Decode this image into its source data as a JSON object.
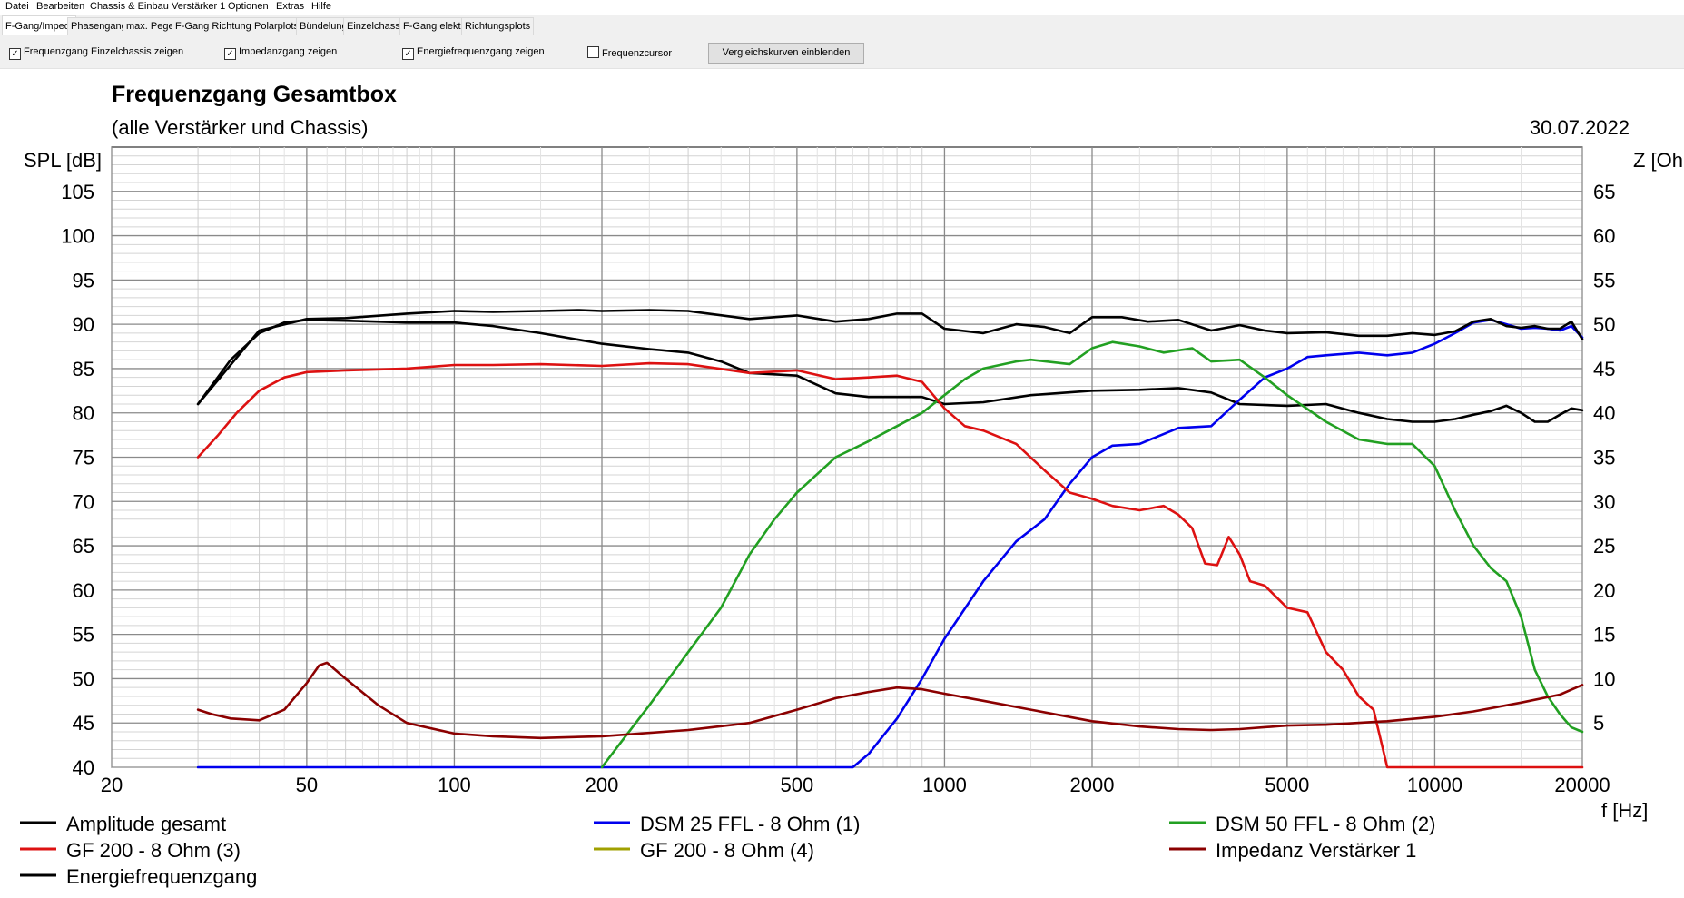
{
  "menu": [
    "Datei",
    "Bearbeiten",
    "Chassis & Einbau",
    "Verstärker 1",
    "Optionen",
    "Extras",
    "Hilfe"
  ],
  "tabs": [
    {
      "label": "F-Gang/Imped.",
      "active": true
    },
    {
      "label": "Phasengang",
      "active": false
    },
    {
      "label": "max. Pegel",
      "active": false
    },
    {
      "label": "F-Gang Richtungen",
      "active": false
    },
    {
      "label": "Polarplots",
      "active": false
    },
    {
      "label": "Bündelung",
      "active": false
    },
    {
      "label": "Einzelchassis",
      "active": false
    },
    {
      "label": "F-Gang elektr.",
      "active": false
    },
    {
      "label": "Richtungsplots",
      "active": false
    }
  ],
  "options": [
    {
      "label": "Frequenzgang Einzelchassis zeigen",
      "checked": true
    },
    {
      "label": "Impedanzgang zeigen",
      "checked": true
    },
    {
      "label": "Energiefrequenzgang zeigen",
      "checked": true
    },
    {
      "label": "Frequenzcursor",
      "checked": false
    }
  ],
  "compare_button": "Vergleichskurven einblenden",
  "chart_data": {
    "type": "line",
    "title": "Frequenzgang Gesamtbox",
    "subtitle": "(alle Verstärker und Chassis)",
    "date": "30.07.2022",
    "ylabel": "SPL [dB]",
    "y2label": "Z [Ohm]",
    "xlabel": "f [Hz]",
    "x_scale": "log",
    "xlim": [
      20,
      20000
    ],
    "ylim": [
      40,
      110
    ],
    "y2lim": [
      0,
      70
    ],
    "x_ticks": [
      20,
      50,
      100,
      200,
      500,
      1000,
      2000,
      5000,
      10000,
      20000
    ],
    "y_ticks": [
      40,
      45,
      50,
      55,
      60,
      65,
      70,
      75,
      80,
      85,
      90,
      95,
      100,
      105
    ],
    "y2_ticks": [
      5,
      10,
      15,
      20,
      25,
      30,
      35,
      40,
      45,
      50,
      55,
      60,
      65
    ],
    "grid": true,
    "legend_position": "bottom",
    "series": [
      {
        "name": "Amplitude gesamt",
        "color": "#000000",
        "axis": "left",
        "points": [
          [
            30,
            81
          ],
          [
            35,
            86
          ],
          [
            40,
            89
          ],
          [
            45,
            90.2
          ],
          [
            50,
            90.5
          ],
          [
            60,
            90.4
          ],
          [
            80,
            90.2
          ],
          [
            100,
            90.2
          ],
          [
            120,
            89.8
          ],
          [
            150,
            89
          ],
          [
            200,
            87.8
          ],
          [
            250,
            87.2
          ],
          [
            300,
            86.8
          ],
          [
            350,
            85.8
          ],
          [
            400,
            84.5
          ],
          [
            500,
            84.2
          ],
          [
            600,
            82.2
          ],
          [
            700,
            81.8
          ],
          [
            800,
            81.8
          ],
          [
            900,
            81.8
          ],
          [
            1000,
            81
          ],
          [
            1200,
            81.2
          ],
          [
            1500,
            82
          ],
          [
            2000,
            82.5
          ],
          [
            2500,
            82.6
          ],
          [
            3000,
            82.8
          ],
          [
            3500,
            82.3
          ],
          [
            4000,
            81
          ],
          [
            5000,
            80.8
          ],
          [
            6000,
            81
          ],
          [
            7000,
            80
          ],
          [
            8000,
            79.3
          ],
          [
            9000,
            79
          ],
          [
            10000,
            79
          ],
          [
            11000,
            79.3
          ],
          [
            12000,
            79.8
          ],
          [
            13000,
            80.2
          ],
          [
            14000,
            80.8
          ],
          [
            15000,
            80
          ],
          [
            16000,
            79
          ],
          [
            17000,
            79
          ],
          [
            18000,
            79.8
          ],
          [
            19000,
            80.5
          ],
          [
            20000,
            80.3
          ]
        ]
      },
      {
        "name": "DSM 25 FFL - 8 Ohm (1)",
        "color": "#0000ee",
        "axis": "left",
        "points": [
          [
            30,
            40
          ],
          [
            100,
            40
          ],
          [
            300,
            40
          ],
          [
            500,
            40
          ],
          [
            650,
            40
          ],
          [
            700,
            41.5
          ],
          [
            800,
            45.5
          ],
          [
            900,
            50
          ],
          [
            1000,
            54.5
          ],
          [
            1200,
            61
          ],
          [
            1400,
            65.5
          ],
          [
            1600,
            68
          ],
          [
            1800,
            72
          ],
          [
            2000,
            75
          ],
          [
            2200,
            76.3
          ],
          [
            2500,
            76.5
          ],
          [
            3000,
            78.3
          ],
          [
            3500,
            78.5
          ],
          [
            4000,
            81.5
          ],
          [
            4500,
            84
          ],
          [
            5000,
            85
          ],
          [
            5500,
            86.3
          ],
          [
            6000,
            86.5
          ],
          [
            7000,
            86.8
          ],
          [
            8000,
            86.5
          ],
          [
            9000,
            86.8
          ],
          [
            10000,
            87.8
          ],
          [
            11000,
            89
          ],
          [
            12000,
            90.2
          ],
          [
            13000,
            90.5
          ],
          [
            14000,
            90
          ],
          [
            15000,
            89.5
          ],
          [
            16000,
            89.6
          ],
          [
            17000,
            89.5
          ],
          [
            18000,
            89.3
          ],
          [
            19000,
            89.8
          ],
          [
            20000,
            88.5
          ]
        ]
      },
      {
        "name": "DSM 50 FFL - 8 Ohm (2)",
        "color": "#22a022",
        "axis": "left",
        "points": [
          [
            200,
            40
          ],
          [
            220,
            43
          ],
          [
            250,
            47
          ],
          [
            300,
            53
          ],
          [
            350,
            58
          ],
          [
            400,
            64
          ],
          [
            450,
            68
          ],
          [
            500,
            71
          ],
          [
            600,
            75
          ],
          [
            700,
            76.8
          ],
          [
            800,
            78.5
          ],
          [
            900,
            80
          ],
          [
            1000,
            82
          ],
          [
            1100,
            83.8
          ],
          [
            1200,
            85
          ],
          [
            1400,
            85.8
          ],
          [
            1500,
            86
          ],
          [
            1800,
            85.5
          ],
          [
            2000,
            87.3
          ],
          [
            2200,
            88
          ],
          [
            2500,
            87.5
          ],
          [
            2800,
            86.8
          ],
          [
            3200,
            87.3
          ],
          [
            3500,
            85.8
          ],
          [
            4000,
            86
          ],
          [
            4500,
            84
          ],
          [
            5000,
            82
          ],
          [
            6000,
            79
          ],
          [
            7000,
            77
          ],
          [
            8000,
            76.5
          ],
          [
            9000,
            76.5
          ],
          [
            10000,
            74
          ],
          [
            11000,
            69
          ],
          [
            12000,
            65
          ],
          [
            13000,
            62.5
          ],
          [
            14000,
            61
          ],
          [
            15000,
            57
          ],
          [
            16000,
            51
          ],
          [
            17000,
            48
          ],
          [
            18000,
            46
          ],
          [
            19000,
            44.5
          ],
          [
            20000,
            44
          ]
        ]
      },
      {
        "name": "GF 200 - 8 Ohm (3)",
        "color": "#dd1111",
        "axis": "left",
        "points": [
          [
            30,
            75
          ],
          [
            33,
            77.5
          ],
          [
            36,
            80
          ],
          [
            40,
            82.5
          ],
          [
            45,
            84
          ],
          [
            50,
            84.6
          ],
          [
            60,
            84.8
          ],
          [
            80,
            85
          ],
          [
            100,
            85.4
          ],
          [
            120,
            85.4
          ],
          [
            150,
            85.5
          ],
          [
            200,
            85.3
          ],
          [
            250,
            85.6
          ],
          [
            300,
            85.5
          ],
          [
            400,
            84.5
          ],
          [
            500,
            84.8
          ],
          [
            600,
            83.8
          ],
          [
            700,
            84
          ],
          [
            800,
            84.2
          ],
          [
            900,
            83.5
          ],
          [
            1000,
            80.5
          ],
          [
            1100,
            78.5
          ],
          [
            1200,
            78
          ],
          [
            1400,
            76.5
          ],
          [
            1600,
            73.5
          ],
          [
            1800,
            71
          ],
          [
            2000,
            70.3
          ],
          [
            2200,
            69.5
          ],
          [
            2500,
            69
          ],
          [
            2800,
            69.5
          ],
          [
            3000,
            68.5
          ],
          [
            3200,
            67
          ],
          [
            3400,
            63
          ],
          [
            3600,
            62.8
          ],
          [
            3800,
            66
          ],
          [
            4000,
            64
          ],
          [
            4200,
            61
          ],
          [
            4500,
            60.5
          ],
          [
            5000,
            58
          ],
          [
            5500,
            57.5
          ],
          [
            6000,
            53
          ],
          [
            6500,
            51
          ],
          [
            7000,
            48
          ],
          [
            7500,
            46.5
          ],
          [
            8000,
            40
          ],
          [
            9000,
            40
          ],
          [
            10000,
            40
          ],
          [
            15000,
            40
          ],
          [
            20000,
            40
          ]
        ]
      },
      {
        "name": "GF 200 - 8 Ohm (4)",
        "color": "#a0a000",
        "axis": "left",
        "points": []
      },
      {
        "name": "Impedanz Verstärker 1",
        "color": "#8b0000",
        "axis": "right",
        "points": [
          [
            30,
            6.5
          ],
          [
            32,
            6
          ],
          [
            35,
            5.5
          ],
          [
            40,
            5.3
          ],
          [
            45,
            6.5
          ],
          [
            50,
            9.5
          ],
          [
            53,
            11.5
          ],
          [
            55,
            11.8
          ],
          [
            60,
            10
          ],
          [
            70,
            7
          ],
          [
            80,
            5
          ],
          [
            100,
            3.8
          ],
          [
            120,
            3.5
          ],
          [
            150,
            3.3
          ],
          [
            200,
            3.5
          ],
          [
            300,
            4.2
          ],
          [
            400,
            5
          ],
          [
            500,
            6.5
          ],
          [
            600,
            7.8
          ],
          [
            700,
            8.5
          ],
          [
            800,
            9
          ],
          [
            900,
            8.8
          ],
          [
            1000,
            8.3
          ],
          [
            1200,
            7.5
          ],
          [
            1500,
            6.5
          ],
          [
            2000,
            5.2
          ],
          [
            2500,
            4.6
          ],
          [
            3000,
            4.3
          ],
          [
            3500,
            4.2
          ],
          [
            4000,
            4.3
          ],
          [
            5000,
            4.7
          ],
          [
            6000,
            4.8
          ],
          [
            8000,
            5.2
          ],
          [
            10000,
            5.7
          ],
          [
            12000,
            6.3
          ],
          [
            15000,
            7.3
          ],
          [
            18000,
            8.2
          ],
          [
            20000,
            9.3
          ]
        ]
      },
      {
        "name": "Energiefrequenzgang",
        "color": "#000000",
        "axis": "left",
        "points": [
          [
            30,
            81
          ],
          [
            40,
            89.3
          ],
          [
            50,
            90.6
          ],
          [
            60,
            90.7
          ],
          [
            80,
            91.2
          ],
          [
            100,
            91.5
          ],
          [
            120,
            91.4
          ],
          [
            150,
            91.5
          ],
          [
            180,
            91.6
          ],
          [
            200,
            91.5
          ],
          [
            250,
            91.6
          ],
          [
            300,
            91.5
          ],
          [
            400,
            90.6
          ],
          [
            500,
            91
          ],
          [
            600,
            90.3
          ],
          [
            700,
            90.6
          ],
          [
            800,
            91.2
          ],
          [
            900,
            91.2
          ],
          [
            1000,
            89.5
          ],
          [
            1200,
            89
          ],
          [
            1400,
            90
          ],
          [
            1600,
            89.7
          ],
          [
            1800,
            89
          ],
          [
            2000,
            90.8
          ],
          [
            2300,
            90.8
          ],
          [
            2600,
            90.3
          ],
          [
            3000,
            90.5
          ],
          [
            3500,
            89.3
          ],
          [
            4000,
            89.9
          ],
          [
            4500,
            89.3
          ],
          [
            5000,
            89
          ],
          [
            6000,
            89.1
          ],
          [
            7000,
            88.7
          ],
          [
            8000,
            88.7
          ],
          [
            9000,
            89
          ],
          [
            10000,
            88.8
          ],
          [
            11000,
            89.2
          ],
          [
            12000,
            90.3
          ],
          [
            13000,
            90.6
          ],
          [
            14000,
            89.8
          ],
          [
            15000,
            89.6
          ],
          [
            16000,
            89.8
          ],
          [
            17000,
            89.5
          ],
          [
            18000,
            89.5
          ],
          [
            19000,
            90.3
          ],
          [
            20000,
            88.3
          ]
        ]
      }
    ]
  }
}
